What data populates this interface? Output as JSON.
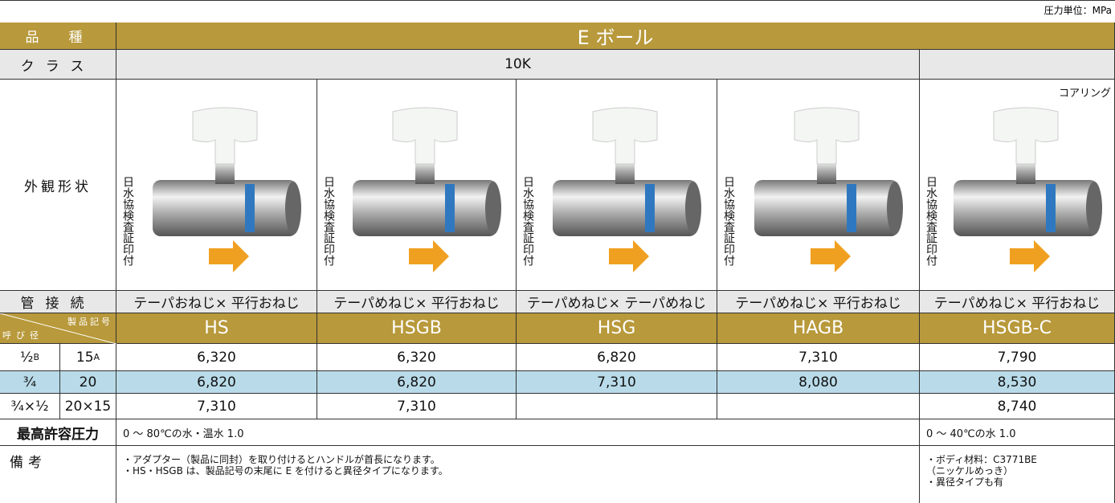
{
  "unit": "圧力単位：MPa",
  "header": {
    "label": "品　種",
    "title": "E ボール"
  },
  "class_row": {
    "label": "クラス",
    "value": "10K"
  },
  "appearance": {
    "label": "外観形状",
    "stamp": "日水協検査証印付",
    "note": "コアリング"
  },
  "connection": {
    "label": "管接続",
    "values": [
      "テーパおねじ× 平行おねじ",
      "テーパめねじ× 平行おねじ",
      "テーパめねじ× テーパめねじ",
      "テーパめねじ× 平行おねじ",
      "テーパめねじ× 平行おねじ"
    ]
  },
  "code_header": {
    "code": "製品記号",
    "size": "呼び径"
  },
  "products": [
    "HS",
    "HSGB",
    "HSG",
    "HAGB",
    "HSGB-C"
  ],
  "sizes": [
    {
      "inch": "½",
      "inch_unit": "B",
      "mm": "15",
      "mm_unit": "A",
      "prices": [
        "6,320",
        "6,320",
        "6,820",
        "7,310",
        "7,790"
      ]
    },
    {
      "inch": "¾",
      "mm": "20",
      "prices": [
        "6,820",
        "6,820",
        "7,310",
        "8,080",
        "8,530"
      ]
    },
    {
      "inch": "¾×½",
      "mm": "20×15",
      "prices": [
        "7,310",
        "7,310",
        null,
        null,
        "8,740"
      ]
    }
  ],
  "pressure": {
    "label": "最高許容圧力",
    "main": "0 ～ 80℃の水・温水 1.0",
    "coring": "0 ～ 40℃の水 1.0"
  },
  "remarks": {
    "label": "備考",
    "main": [
      "・アダプター（製品に同封）を取り付けるとハンドルが首長になります。",
      "・HS・HSGB は、製品記号の末尾に E を付けると異径タイプになります。"
    ],
    "coring": [
      "・ボディ材料：C3771BE",
      "（ニッケルめっき）",
      "・異径タイプも有"
    ]
  }
}
